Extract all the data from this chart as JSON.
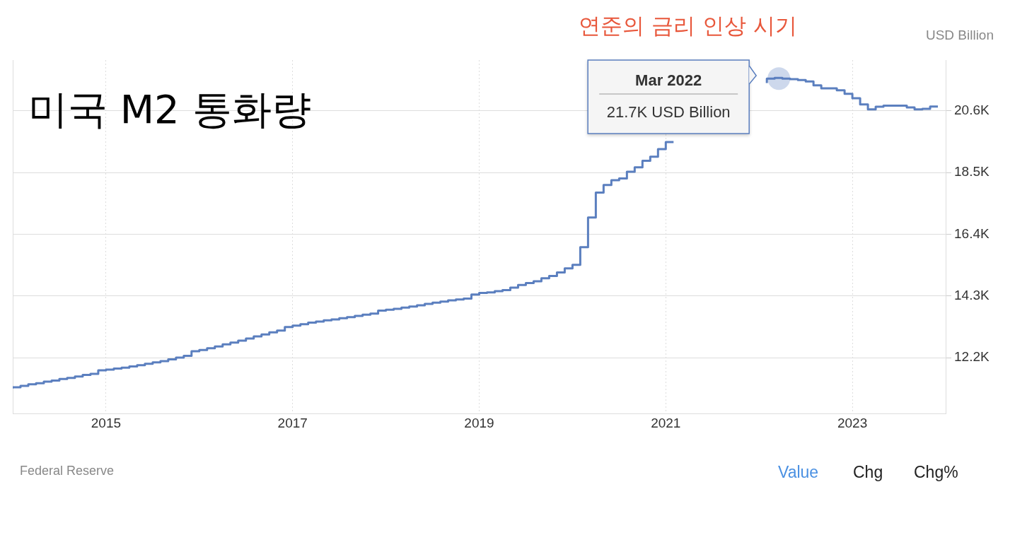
{
  "chart_data": {
    "type": "step",
    "title": "미국 M2 통화량",
    "ylabel": "USD Billion",
    "annotations": [
      "연준의 금리 인상 시기",
      {
        "text": "Mar 2022\n21.7K USD Billion",
        "x": "2022-03",
        "y": 21700
      },
      "Federal Reserve",
      "Value",
      "Chg",
      "Chg%"
    ],
    "x": [
      "2014-01",
      "2014-02",
      "2014-03",
      "2014-04",
      "2014-05",
      "2014-06",
      "2014-07",
      "2014-08",
      "2014-09",
      "2014-10",
      "2014-11",
      "2014-12",
      "2015-01",
      "2015-02",
      "2015-03",
      "2015-04",
      "2015-05",
      "2015-06",
      "2015-07",
      "2015-08",
      "2015-09",
      "2015-10",
      "2015-11",
      "2015-12",
      "2016-01",
      "2016-02",
      "2016-03",
      "2016-04",
      "2016-05",
      "2016-06",
      "2016-07",
      "2016-08",
      "2016-09",
      "2016-10",
      "2016-11",
      "2016-12",
      "2017-01",
      "2017-02",
      "2017-03",
      "2017-04",
      "2017-05",
      "2017-06",
      "2017-07",
      "2017-08",
      "2017-09",
      "2017-10",
      "2017-11",
      "2017-12",
      "2018-01",
      "2018-02",
      "2018-03",
      "2018-04",
      "2018-05",
      "2018-06",
      "2018-07",
      "2018-08",
      "2018-09",
      "2018-10",
      "2018-11",
      "2018-12",
      "2019-01",
      "2019-02",
      "2019-03",
      "2019-04",
      "2019-05",
      "2019-06",
      "2019-07",
      "2019-08",
      "2019-09",
      "2019-10",
      "2019-11",
      "2019-12",
      "2020-01",
      "2020-02",
      "2020-03",
      "2020-04",
      "2020-05",
      "2020-06",
      "2020-07",
      "2020-08",
      "2020-09",
      "2020-10",
      "2020-11",
      "2020-12",
      "2021-01",
      "2021-02",
      "2021-03",
      "2021-04",
      "2021-05",
      "2021-06",
      "2021-07",
      "2021-08",
      "2021-09",
      "2021-10",
      "2021-11",
      "2021-12",
      "2022-01",
      "2022-02",
      "2022-03",
      "2022-04",
      "2022-05",
      "2022-06",
      "2022-07",
      "2022-08",
      "2022-09",
      "2022-10",
      "2022-11",
      "2022-12",
      "2023-01",
      "2023-02",
      "2023-03",
      "2023-04",
      "2023-05",
      "2023-06",
      "2023-07",
      "2023-08",
      "2023-09",
      "2023-10",
      "2023-11",
      "2023-12"
    ],
    "series": [
      {
        "color": "#5b7fbf",
        "values": [
          11150,
          11190,
          11240,
          11290,
          11330,
          11380,
          11420,
          11470,
          11510,
          11560,
          11610,
          11650,
          11770,
          11790,
          11830,
          11860,
          11900,
          11940,
          11990,
          12040,
          12080,
          12140,
          12200,
          12260,
          12420,
          12460,
          12520,
          12580,
          12650,
          12710,
          12780,
          12850,
          12920,
          12990,
          13060,
          13120,
          13240,
          13290,
          13340,
          13390,
          13430,
          13470,
          13500,
          13540,
          13580,
          13620,
          13660,
          13700,
          13800,
          13830,
          13860,
          13900,
          13940,
          13980,
          14030,
          14070,
          14110,
          14150,
          14180,
          14210,
          14350,
          14400,
          14420,
          14460,
          14500,
          14580,
          14670,
          14740,
          14800,
          14900,
          14980,
          15100,
          15240,
          15360,
          15960,
          16970,
          17820,
          18080,
          18240,
          18300,
          18530,
          18680,
          18900,
          19040,
          19300,
          19540,
          null,
          null,
          null,
          null,
          null,
          null,
          null,
          null,
          null,
          null,
          null,
          21550,
          21700,
          21720,
          21700,
          21680,
          21650,
          21600,
          21470,
          21370,
          21370,
          21300,
          21180,
          21030,
          20820,
          20650,
          20740,
          20780,
          20780,
          20780,
          20720,
          20650,
          20670,
          20750
        ]
      }
    ],
    "xlim": [
      "2014-01",
      "2024-01"
    ],
    "xticks": [
      "2015",
      "2017",
      "2019",
      "2021",
      "2023"
    ],
    "ylim": [
      10300,
      22330
    ],
    "yticks": [
      {
        "value": 12200,
        "label": "12.2K"
      },
      {
        "value": 14300,
        "label": "14.3K"
      },
      {
        "value": 16400,
        "label": "16.4K"
      },
      {
        "value": 18500,
        "label": "18.5K"
      },
      {
        "value": 20600,
        "label": "20.6K"
      }
    ],
    "grid": true,
    "legend": false
  }
}
